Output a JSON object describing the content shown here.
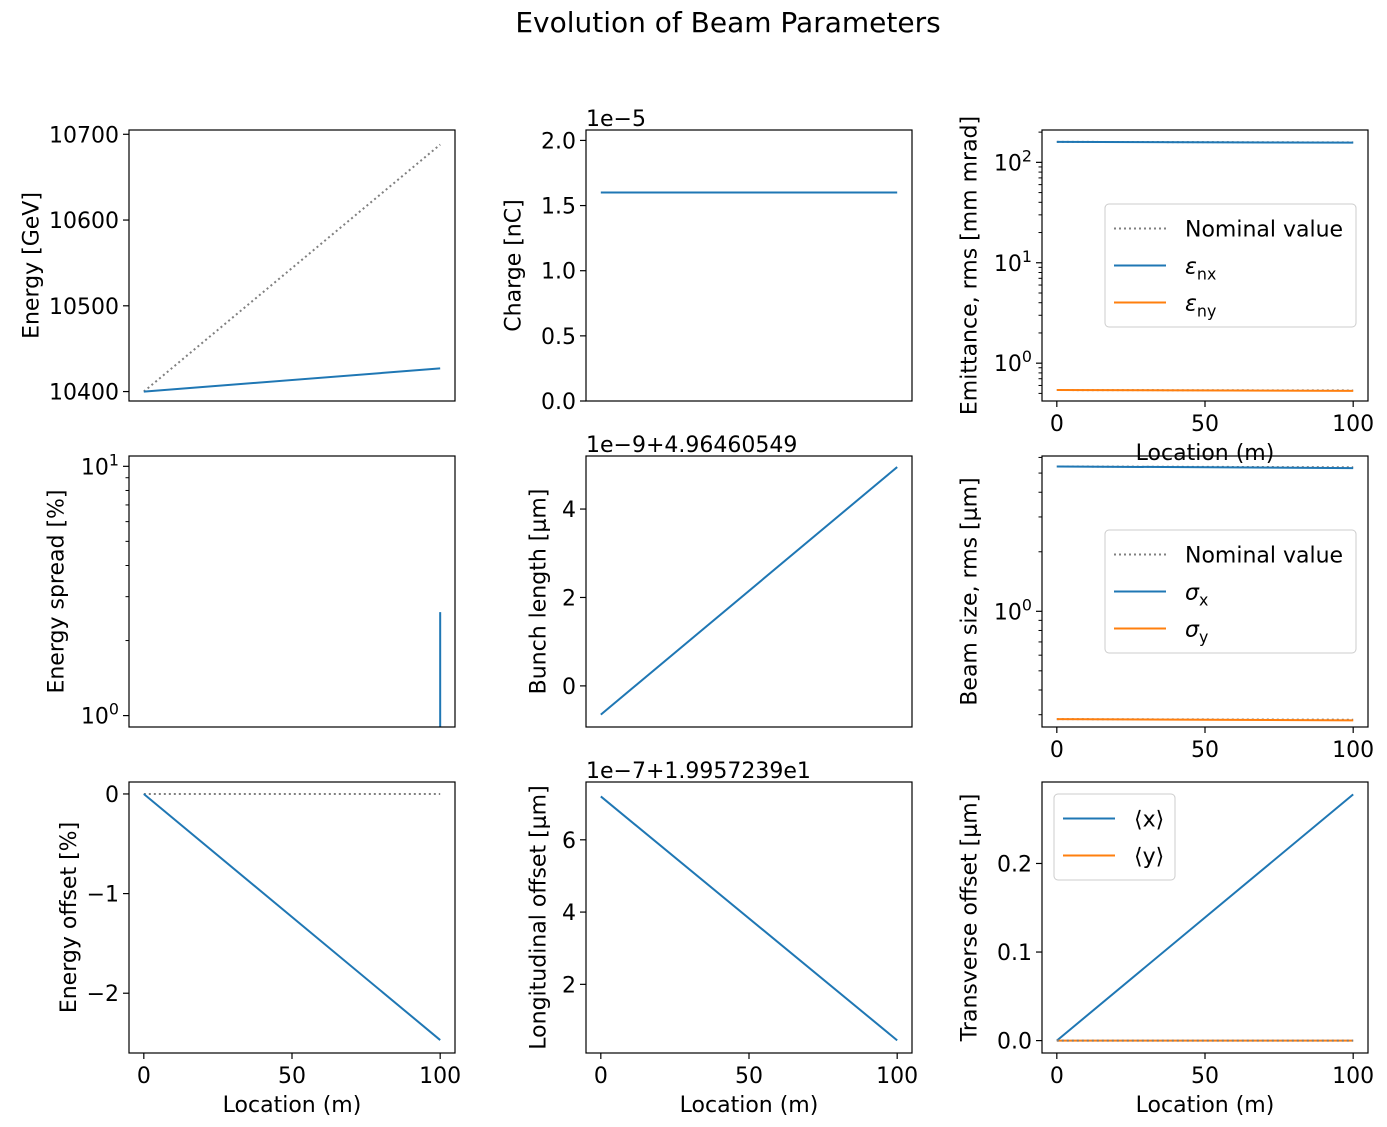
{
  "figure": {
    "title": "Evolution of Beam Parameters"
  },
  "colors": {
    "series_blue": "#1f77b4",
    "series_orange": "#ff7f0e",
    "nominal_gray": "#808080",
    "axis": "#000000",
    "legend_border": "#cccccc"
  },
  "chart_data": [
    {
      "id": "energy",
      "type": "line",
      "ylabel": "Energy [GeV]",
      "xlabel": "",
      "xlim": [
        -5,
        105
      ],
      "ylim": [
        10389,
        10705
      ],
      "yscale": "linear",
      "show_x_ticks": false,
      "yticks": [
        10400,
        10500,
        10600,
        10700
      ],
      "ytick_labels": [
        "10400",
        "10500",
        "10600",
        "10700"
      ],
      "grid": false,
      "series": [
        {
          "style": "nominal",
          "x": [
            0,
            100
          ],
          "y": [
            10400,
            10688
          ]
        },
        {
          "style": "blue",
          "x": [
            0,
            100
          ],
          "y": [
            10400,
            10427
          ]
        }
      ]
    },
    {
      "id": "charge",
      "type": "line",
      "ylabel": "Charge [nC]",
      "xlabel": "",
      "offset_text": "1e−5",
      "xlim": [
        -5,
        105
      ],
      "ylim": [
        0,
        2.08
      ],
      "yscale": "linear",
      "show_x_ticks": false,
      "yticks": [
        0,
        0.5,
        1.0,
        1.5,
        2.0
      ],
      "ytick_labels": [
        "0.0",
        "0.5",
        "1.0",
        "1.5",
        "2.0"
      ],
      "grid": false,
      "series": [
        {
          "style": "blue",
          "x": [
            0,
            100
          ],
          "y": [
            1.6,
            1.6
          ]
        }
      ]
    },
    {
      "id": "emittance",
      "type": "line",
      "ylabel": "Emittance, rms [mm mrad]",
      "xlabel": "Location (m)",
      "xlim": [
        -5,
        105
      ],
      "ylim": [
        0.42,
        210
      ],
      "yscale": "log",
      "show_x_ticks": true,
      "xticks": [
        0,
        50,
        100
      ],
      "xtick_labels": [
        "0",
        "50",
        "100"
      ],
      "yticks": [
        1,
        10,
        100
      ],
      "ytick_labels": [
        "10^0",
        "10^1",
        "10^2"
      ],
      "grid": false,
      "legend": {
        "position": "center-right",
        "entries": [
          {
            "label": "Nominal value",
            "style": "nominal"
          },
          {
            "label": "ε_nx",
            "style": "blue"
          },
          {
            "label": "ε_ny",
            "style": "orange"
          }
        ]
      },
      "series": [
        {
          "style": "nominal",
          "x": [
            0,
            100
          ],
          "y": [
            160,
            158
          ]
        },
        {
          "style": "blue",
          "x": [
            0,
            100
          ],
          "y": [
            160,
            157
          ]
        },
        {
          "style": "nominal",
          "x": [
            0,
            100
          ],
          "y": [
            0.54,
            0.535
          ]
        },
        {
          "style": "orange",
          "x": [
            0,
            100
          ],
          "y": [
            0.54,
            0.53
          ]
        }
      ]
    },
    {
      "id": "energy_spread",
      "type": "line",
      "ylabel": "Energy spread [%]",
      "xlabel": "",
      "xlim": [
        -5,
        105
      ],
      "ylim": [
        0.9,
        11
      ],
      "yscale": "log",
      "show_x_ticks": false,
      "yticks": [
        1,
        10
      ],
      "ytick_labels": [
        "10^0",
        "10^1"
      ],
      "grid": false,
      "series": [
        {
          "style": "blue",
          "x": [
            100,
            100
          ],
          "y": [
            0.8,
            2.6
          ]
        }
      ]
    },
    {
      "id": "bunch_length",
      "type": "line",
      "ylabel": "Bunch length [μm]",
      "xlabel": "",
      "offset_text": "1e−9+4.96460549",
      "xlim": [
        -5,
        105
      ],
      "ylim": [
        -0.93,
        5.2
      ],
      "yscale": "linear",
      "show_x_ticks": false,
      "yticks": [
        0,
        2,
        4
      ],
      "ytick_labels": [
        "0",
        "2",
        "4"
      ],
      "grid": false,
      "series": [
        {
          "style": "blue",
          "x": [
            0,
            100
          ],
          "y": [
            -0.65,
            4.95
          ]
        }
      ]
    },
    {
      "id": "beam_size",
      "type": "line",
      "ylabel": "Beam size, rms [μm]",
      "xlabel": "",
      "xlim": [
        -5,
        105
      ],
      "ylim": [
        0.26,
        6.1
      ],
      "yscale": "log",
      "show_x_ticks": true,
      "xticks": [
        0,
        50,
        100
      ],
      "xtick_labels": [
        "0",
        "50",
        "100"
      ],
      "yticks": [
        1
      ],
      "ytick_labels": [
        "10^0"
      ],
      "grid": false,
      "legend": {
        "position": "center-right",
        "entries": [
          {
            "label": "Nominal value",
            "style": "nominal"
          },
          {
            "label": "σ_x",
            "style": "blue"
          },
          {
            "label": "σ_y",
            "style": "orange"
          }
        ]
      },
      "series": [
        {
          "style": "nominal",
          "x": [
            0,
            100
          ],
          "y": [
            5.4,
            5.35
          ]
        },
        {
          "style": "blue",
          "x": [
            0,
            100
          ],
          "y": [
            5.4,
            5.3
          ]
        },
        {
          "style": "nominal",
          "x": [
            0,
            100
          ],
          "y": [
            0.285,
            0.283
          ]
        },
        {
          "style": "orange",
          "x": [
            0,
            100
          ],
          "y": [
            0.285,
            0.281
          ]
        }
      ]
    },
    {
      "id": "energy_offset",
      "type": "line",
      "ylabel": "Energy offset [%]",
      "xlabel": "Location (m)",
      "xlim": [
        -5,
        105
      ],
      "ylim": [
        -2.6,
        0.12
      ],
      "yscale": "linear",
      "show_x_ticks": true,
      "xticks": [
        0,
        50,
        100
      ],
      "xtick_labels": [
        "0",
        "50",
        "100"
      ],
      "yticks": [
        0,
        -1,
        -2
      ],
      "ytick_labels": [
        "0",
        "−1",
        "−2"
      ],
      "grid": false,
      "series": [
        {
          "style": "nominal",
          "x": [
            0,
            100
          ],
          "y": [
            0,
            0
          ]
        },
        {
          "style": "blue",
          "x": [
            0,
            100
          ],
          "y": [
            0,
            -2.47
          ]
        }
      ]
    },
    {
      "id": "longitudinal_offset",
      "type": "line",
      "ylabel": "Longitudinal offset [μm]",
      "xlabel": "Location (m)",
      "offset_text": "1e−7+1.9957239e1",
      "xlim": [
        -5,
        105
      ],
      "ylim": [
        0.1,
        7.6
      ],
      "yscale": "linear",
      "show_x_ticks": true,
      "xticks": [
        0,
        50,
        100
      ],
      "xtick_labels": [
        "0",
        "50",
        "100"
      ],
      "yticks": [
        2,
        4,
        6
      ],
      "ytick_labels": [
        "2",
        "4",
        "6"
      ],
      "grid": false,
      "series": [
        {
          "style": "blue",
          "x": [
            0,
            100
          ],
          "y": [
            7.2,
            0.45
          ]
        }
      ]
    },
    {
      "id": "transverse_offset",
      "type": "line",
      "ylabel": "Transverse offset [μm]",
      "xlabel": "Location (m)",
      "xlim": [
        -5,
        105
      ],
      "ylim": [
        -0.014,
        0.292
      ],
      "yscale": "linear",
      "show_x_ticks": true,
      "xticks": [
        0,
        50,
        100
      ],
      "xtick_labels": [
        "0",
        "50",
        "100"
      ],
      "yticks": [
        0,
        0.1,
        0.2
      ],
      "ytick_labels": [
        "0.0",
        "0.1",
        "0.2"
      ],
      "grid": false,
      "legend": {
        "position": "top-left",
        "entries": [
          {
            "label": "⟨x⟩",
            "style": "blue"
          },
          {
            "label": "⟨y⟩",
            "style": "orange"
          }
        ]
      },
      "series": [
        {
          "style": "blue",
          "x": [
            0,
            100
          ],
          "y": [
            0,
            0.278
          ]
        },
        {
          "style": "orange",
          "x": [
            0,
            100
          ],
          "y": [
            0,
            0
          ]
        },
        {
          "style": "nominal",
          "x": [
            0,
            100
          ],
          "y": [
            0,
            0
          ]
        }
      ]
    }
  ]
}
